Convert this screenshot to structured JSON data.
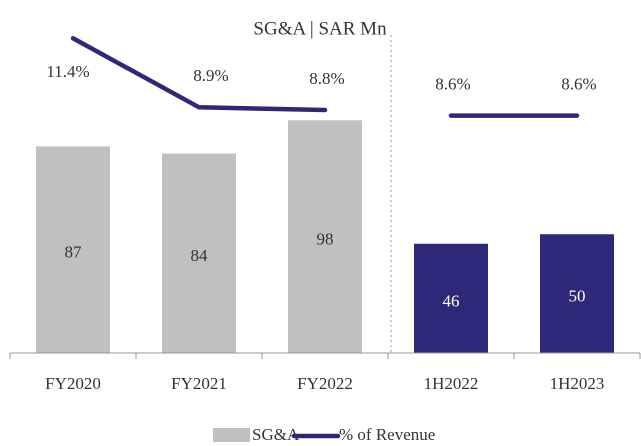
{
  "chart_data": {
    "type": "bar",
    "title": "SG&A | SAR Mn",
    "categories": [
      "FY2020",
      "FY2021",
      "FY2022",
      "1H2022",
      "1H2023"
    ],
    "series": [
      {
        "name": "SG&A",
        "type": "bar",
        "color": "#c0c0c0",
        "colors": [
          "#c0c0c0",
          "#c0c0c0",
          "#c0c0c0",
          "#2e2878",
          "#2e2878"
        ],
        "values": [
          87,
          84,
          98,
          46,
          50
        ]
      },
      {
        "name": "% of Revenue",
        "type": "line",
        "axis": "y2",
        "color": "#2e2878",
        "values": [
          11.4,
          8.9,
          8.8,
          8.6,
          8.6
        ],
        "value_labels": [
          "11.4%",
          "8.9%",
          "8.8%",
          "8.6%",
          "8.6%"
        ]
      }
    ],
    "ylim": [
      0,
      136
    ],
    "y2lim": [
      0,
      11.7
    ],
    "legend": "bottom"
  }
}
